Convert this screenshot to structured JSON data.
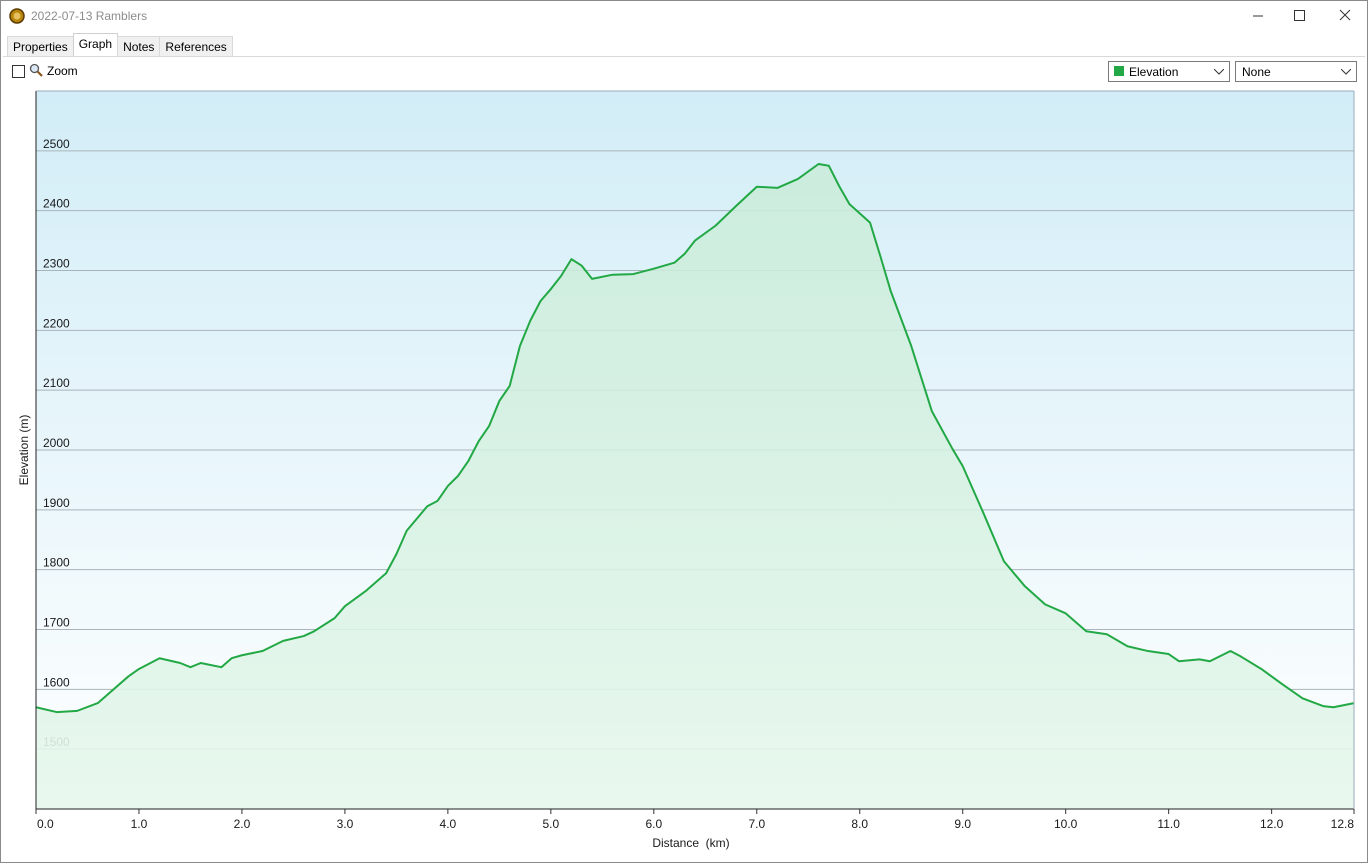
{
  "window": {
    "title": "2022-07-13 Ramblers"
  },
  "tabs": [
    "Properties",
    "Graph",
    "Notes",
    "References"
  ],
  "toolbar": {
    "zoom": "Zoom",
    "secondary_select": "None"
  },
  "chart_data": {
    "type": "line",
    "xlabel": "Distance  (km)",
    "ylabel": "Elevation (m)",
    "x": [
      0.0,
      0.2,
      0.4,
      0.6,
      0.7,
      0.9,
      1.0,
      1.2,
      1.4,
      1.5,
      1.6,
      1.8,
      1.9,
      2.0,
      2.2,
      2.4,
      2.6,
      2.7,
      2.9,
      3.0,
      3.2,
      3.4,
      3.5,
      3.6,
      3.8,
      3.9,
      4.0,
      4.1,
      4.2,
      4.3,
      4.4,
      4.5,
      4.6,
      4.7,
      4.8,
      4.9,
      5.0,
      5.1,
      5.2,
      5.3,
      5.4,
      5.6,
      5.8,
      6.0,
      6.2,
      6.3,
      6.4,
      6.6,
      6.8,
      7.0,
      7.2,
      7.4,
      7.6,
      7.7,
      7.8,
      7.9,
      8.1,
      8.2,
      8.3,
      8.5,
      8.7,
      8.9,
      9.0,
      9.2,
      9.4,
      9.6,
      9.8,
      10.0,
      10.2,
      10.4,
      10.6,
      10.8,
      11.0,
      11.1,
      11.3,
      11.4,
      11.6,
      11.7,
      11.9,
      12.1,
      12.3,
      12.5,
      12.6,
      12.8
    ],
    "series": [
      {
        "name": "Elevation",
        "color": "#22a845",
        "values": [
          1570,
          1562,
          1564,
          1577,
          1592,
          1622,
          1634,
          1652,
          1644,
          1637,
          1644,
          1637,
          1652,
          1657,
          1664,
          1681,
          1689,
          1697,
          1719,
          1739,
          1764,
          1794,
          1826,
          1865,
          1906,
          1915,
          1940,
          1957,
          1982,
          2015,
          2040,
          2082,
          2107,
          2174,
          2216,
          2249,
          2269,
          2291,
          2319,
          2308,
          2286,
          2293,
          2294,
          2303,
          2313,
          2328,
          2350,
          2375,
          2408,
          2440,
          2438,
          2453,
          2478,
          2475,
          2441,
          2411,
          2380,
          2324,
          2266,
          2174,
          2065,
          2002,
          1973,
          1895,
          1814,
          1773,
          1742,
          1727,
          1697,
          1692,
          1672,
          1664,
          1659,
          1647,
          1650,
          1647,
          1664,
          1655,
          1634,
          1609,
          1585,
          1572,
          1570,
          1577
        ]
      }
    ],
    "xlim": [
      0,
      12.8
    ],
    "ylim": [
      1400,
      2600
    ],
    "xticks": [
      {
        "value": 0,
        "label": "0.0"
      },
      {
        "value": 1,
        "label": "1.0"
      },
      {
        "value": 2,
        "label": "2.0"
      },
      {
        "value": 3,
        "label": "3.0"
      },
      {
        "value": 4,
        "label": "4.0"
      },
      {
        "value": 5,
        "label": "5.0"
      },
      {
        "value": 6,
        "label": "6.0"
      },
      {
        "value": 7,
        "label": "7.0"
      },
      {
        "value": 8,
        "label": "8.0"
      },
      {
        "value": 9,
        "label": "9.0"
      },
      {
        "value": 10,
        "label": "10.0"
      },
      {
        "value": 11,
        "label": "11.0"
      },
      {
        "value": 12,
        "label": "12.0"
      },
      {
        "value": 12.8,
        "label": "12.8"
      }
    ],
    "yticks": [
      1500,
      1600,
      1700,
      1800,
      1900,
      2000,
      2100,
      2200,
      2300,
      2400,
      2500
    ],
    "grid": true
  }
}
